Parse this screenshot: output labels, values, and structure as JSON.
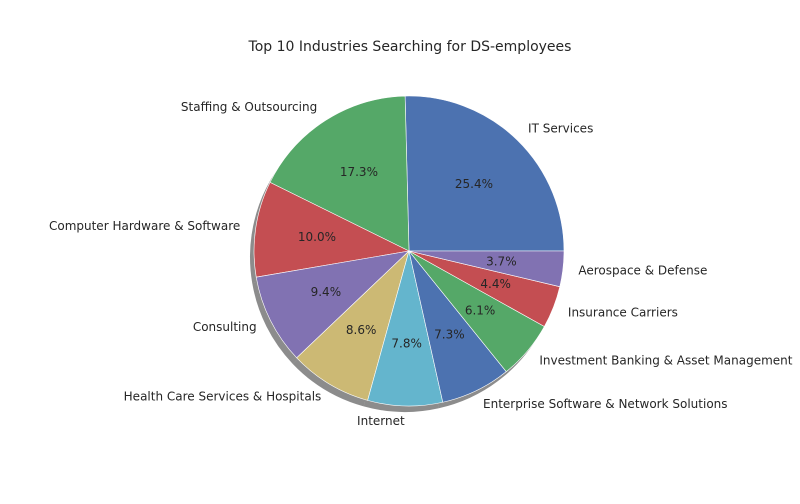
{
  "chart_data": {
    "type": "pie",
    "title": "Top 10 Industries Searching for DS-employees",
    "start_angle_deg": 0,
    "direction": "counterclockwise",
    "shadow": true,
    "labels": [
      "IT Services",
      "Staffing & Outsourcing",
      "Computer Hardware & Software",
      "Consulting",
      "Health Care Services & Hospitals",
      "Internet",
      "Enterprise Software & Network Solutions",
      "Investment Banking & Asset Management",
      "Insurance Carriers",
      "Aerospace & Defense"
    ],
    "values": [
      25.4,
      17.3,
      10.0,
      9.4,
      8.6,
      7.8,
      7.3,
      6.1,
      4.4,
      3.7
    ],
    "pct_labels": [
      "25.4%",
      "17.3%",
      "10.0%",
      "9.4%",
      "8.6%",
      "7.8%",
      "7.3%",
      "6.1%",
      "4.4%",
      "3.7%"
    ],
    "colors": [
      "#4c72b0",
      "#55a868",
      "#c44e52",
      "#8172b2",
      "#ccb974",
      "#64b5cd",
      "#4c72b0",
      "#55a868",
      "#c44e52",
      "#8172b2"
    ]
  }
}
